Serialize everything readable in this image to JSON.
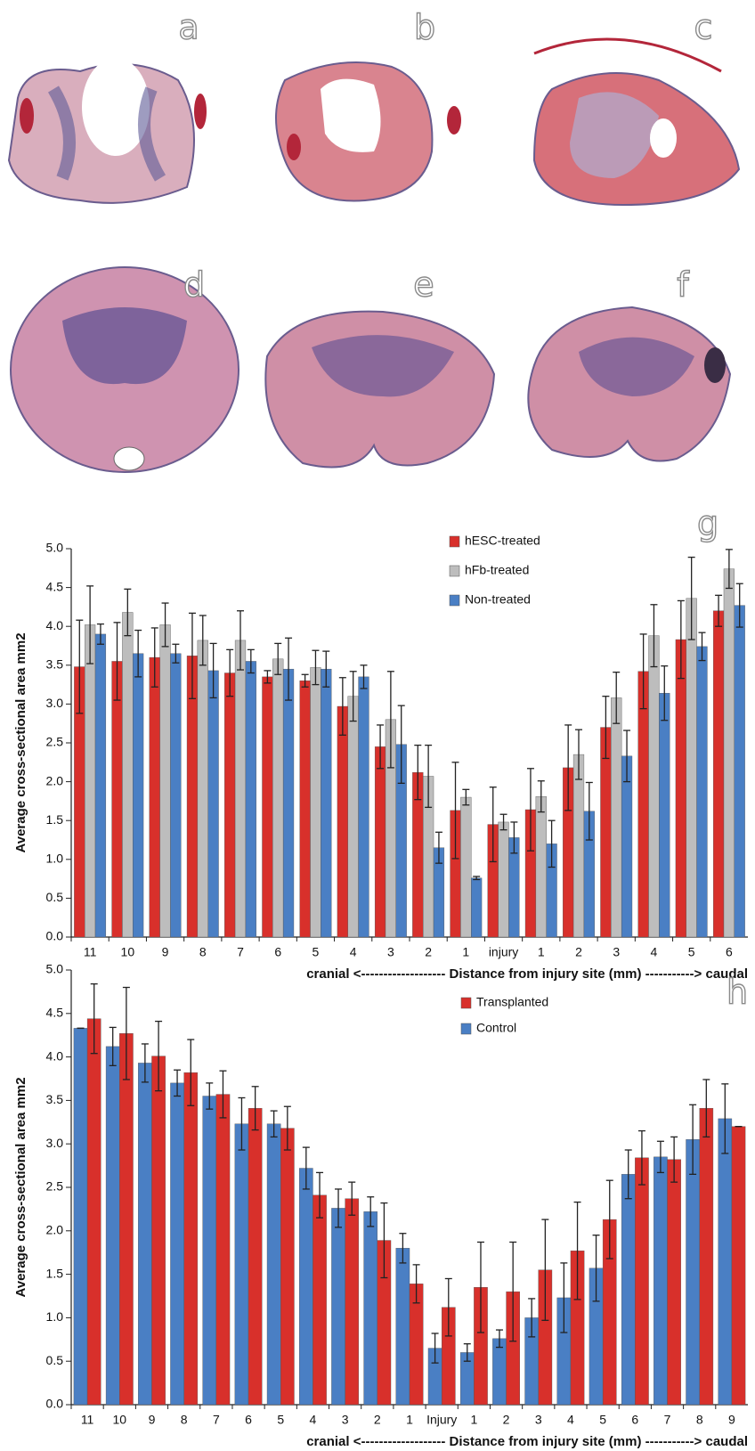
{
  "panels": [
    "a",
    "b",
    "c",
    "d",
    "e",
    "f"
  ],
  "chart_data": [
    {
      "type": "bar",
      "annotation": "g",
      "ylabel": "Average cross-sectional area mm2",
      "xlabel": "cranial <------------------- Distance from injury site (mm) -----------> caudal",
      "categories": [
        "11",
        "10",
        "9",
        "8",
        "7",
        "6",
        "5",
        "4",
        "3",
        "2",
        "1",
        "injury",
        "1",
        "2",
        "3",
        "4",
        "5",
        "6"
      ],
      "ylim": [
        0,
        5
      ],
      "yticks": [
        {
          "value": 0,
          "label": "0.0"
        },
        0.5,
        {
          "value": 1,
          "label": "1.0"
        },
        1.5,
        {
          "value": 2,
          "label": "2.0"
        },
        2.5,
        {
          "value": 3,
          "label": "3.0"
        },
        3.5,
        {
          "value": 4,
          "label": "4.0"
        },
        4.5,
        {
          "value": 5,
          "label": "5.0"
        }
      ],
      "series": [
        {
          "name": "hESC-treated",
          "color": "#d8302b",
          "values": [
            3.48,
            3.55,
            3.6,
            3.62,
            3.4,
            3.35,
            3.3,
            2.97,
            2.45,
            2.12,
            1.63,
            1.45,
            1.64,
            2.18,
            2.7,
            3.42,
            3.83,
            4.2
          ],
          "errors": [
            0.6,
            0.5,
            0.38,
            0.55,
            0.3,
            0.08,
            0.08,
            0.37,
            0.28,
            0.35,
            0.62,
            0.48,
            0.53,
            0.55,
            0.4,
            0.48,
            0.5,
            0.2
          ]
        },
        {
          "name": "hFb-treated",
          "color": "#bdbdbd",
          "values": [
            4.02,
            4.18,
            4.02,
            3.82,
            3.82,
            3.58,
            3.47,
            3.1,
            2.8,
            2.07,
            1.8,
            1.48,
            1.81,
            2.35,
            3.08,
            3.88,
            4.36,
            4.74
          ],
          "errors": [
            0.5,
            0.3,
            0.28,
            0.32,
            0.38,
            0.2,
            0.22,
            0.32,
            0.62,
            0.4,
            0.1,
            0.1,
            0.2,
            0.32,
            0.33,
            0.4,
            0.53,
            0.25
          ]
        },
        {
          "name": "Non-treated",
          "color": "#4a7fc4",
          "values": [
            3.9,
            3.65,
            3.65,
            3.43,
            3.55,
            3.45,
            3.45,
            3.35,
            2.48,
            1.15,
            0.76,
            1.28,
            1.2,
            1.62,
            2.33,
            3.14,
            3.74,
            4.27
          ],
          "errors": [
            0.13,
            0.3,
            0.12,
            0.35,
            0.15,
            0.4,
            0.23,
            0.15,
            0.5,
            0.2,
            0.02,
            0.2,
            0.3,
            0.37,
            0.33,
            0.35,
            0.18,
            0.28
          ]
        }
      ]
    },
    {
      "type": "bar",
      "annotation": "h",
      "ylabel": "Average cross-sectional area mm2",
      "xlabel": "cranial <------------------- Distance from injury site (mm) -----------> caudal",
      "categories": [
        "11",
        "10",
        "9",
        "8",
        "7",
        "6",
        "5",
        "4",
        "3",
        "2",
        "1",
        "Injury",
        "1",
        "2",
        "3",
        "4",
        "5",
        "6",
        "7",
        "8",
        "9"
      ],
      "ylim": [
        0,
        5
      ],
      "yticks": [
        {
          "value": 0,
          "label": "0.0"
        },
        0.5,
        {
          "value": 1,
          "label": "1.0"
        },
        1.5,
        {
          "value": 2,
          "label": "2.0"
        },
        2.5,
        {
          "value": 3,
          "label": "3.0"
        },
        3.5,
        {
          "value": 4,
          "label": "4.0"
        },
        4.5,
        {
          "value": 5,
          "label": "5.0"
        }
      ],
      "series": [
        {
          "name": "Control",
          "color": "#4a7fc4",
          "values": [
            4.33,
            4.12,
            3.93,
            3.7,
            3.55,
            3.23,
            3.23,
            2.72,
            2.26,
            2.22,
            1.8,
            0.65,
            0.6,
            0.76,
            1.0,
            1.23,
            1.57,
            2.65,
            2.85,
            3.05,
            3.29
          ],
          "errors": [
            0,
            0.22,
            0.22,
            0.15,
            0.15,
            0.3,
            0.15,
            0.24,
            0.22,
            0.17,
            0.17,
            0.17,
            0.1,
            0.1,
            0.22,
            0.4,
            0.38,
            0.28,
            0.18,
            0.4,
            0.4
          ]
        },
        {
          "name": "Transplanted",
          "color": "#d8302b",
          "values": [
            4.44,
            4.27,
            4.01,
            3.82,
            3.57,
            3.41,
            3.18,
            2.41,
            2.37,
            1.89,
            1.39,
            1.12,
            1.35,
            1.3,
            1.55,
            1.77,
            2.13,
            2.84,
            2.82,
            3.41,
            3.2
          ],
          "errors": [
            0.4,
            0.53,
            0.4,
            0.38,
            0.27,
            0.25,
            0.25,
            0.26,
            0.19,
            0.43,
            0.22,
            0.33,
            0.52,
            0.57,
            0.58,
            0.56,
            0.45,
            0.31,
            0.26,
            0.33,
            0
          ]
        }
      ]
    }
  ]
}
